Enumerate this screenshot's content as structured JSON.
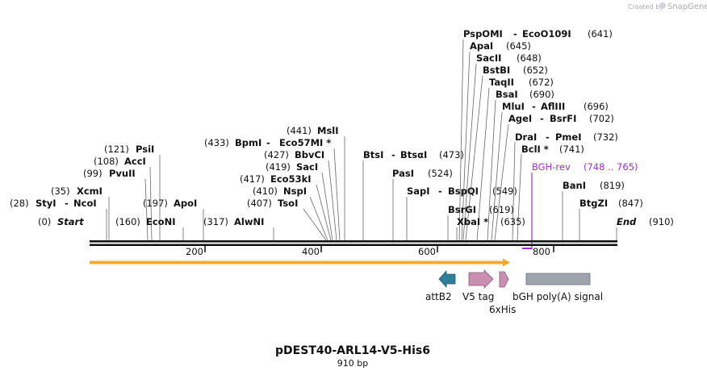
{
  "app": {
    "watermark": "Created by",
    "brand": "SnapGene"
  },
  "plasmid": {
    "name": "pDEST40-ARL14-V5-His6",
    "size_label": "910 bp"
  },
  "colors": {
    "backbone": "#000000",
    "primer": "#9933cc",
    "orf": "#f5a623",
    "attB2": "#2e7d99",
    "v5": "#c98fb0",
    "his": "#c98fb0",
    "polyA": "#a0a5ad"
  },
  "scale": {
    "ticks": [
      "200",
      "400",
      "600",
      "800"
    ]
  },
  "sites": [
    {
      "name": "Start",
      "italic": true,
      "pos": "(0)"
    },
    {
      "name": "StyI",
      "name2": "NcoI",
      "pos": "(28)"
    },
    {
      "name": "XcmI",
      "pos": "(35)"
    },
    {
      "name": "PvuII",
      "pos": "(99)"
    },
    {
      "name": "AccI",
      "pos": "(108)"
    },
    {
      "name": "PsiI",
      "pos": "(121)"
    },
    {
      "name": "EcoNI",
      "pos": "(160)"
    },
    {
      "name": "ApoI",
      "pos": "(197)"
    },
    {
      "name": "AlwNI",
      "pos": "(317)"
    },
    {
      "name": "TsoI",
      "pos": "(407)"
    },
    {
      "name": "NspI",
      "pos": "(410)"
    },
    {
      "name": "Eco53kI",
      "pos": "(417)"
    },
    {
      "name": "SacI",
      "pos": "(419)"
    },
    {
      "name": "BbvCI",
      "pos": "(427)"
    },
    {
      "name": "BpmI",
      "name2": "Eco57MI *",
      "pos": "(433)"
    },
    {
      "name": "MslI",
      "pos": "(441)"
    },
    {
      "name": "BtsI",
      "name2": "BtsαI",
      "pos": "(473)"
    },
    {
      "name": "PasI",
      "pos": "(524)"
    },
    {
      "name": "SapI",
      "name2": "BspQI",
      "pos": "(549)"
    },
    {
      "name": "BsrGI",
      "pos": "(619)"
    },
    {
      "name": "XbaI *",
      "pos": "(635)"
    },
    {
      "name": "PspOMI",
      "name2": "EcoO109I",
      "pos": "(641)"
    },
    {
      "name": "ApaI",
      "pos": "(645)"
    },
    {
      "name": "SacII",
      "pos": "(648)"
    },
    {
      "name": "BstBI",
      "pos": "(652)"
    },
    {
      "name": "TaqII",
      "pos": "(672)"
    },
    {
      "name": "BsaI",
      "pos": "(690)"
    },
    {
      "name": "MluI",
      "name2": "AflIII",
      "pos": "(696)"
    },
    {
      "name": "AgeI",
      "name2": "BsrFI",
      "pos": "(702)"
    },
    {
      "name": "DraI",
      "name2": "PmeI",
      "pos": "(732)"
    },
    {
      "name": "BclI *",
      "pos": "(741)"
    },
    {
      "name": "BanI",
      "pos": "(819)"
    },
    {
      "name": "BtgZI",
      "pos": "(847)"
    },
    {
      "name": "End",
      "italic": true,
      "pos": "(910)"
    }
  ],
  "primer": {
    "name": "BGH-rev",
    "range": "(748 .. 765)"
  },
  "features": [
    {
      "id": "attB2",
      "label": "attB2"
    },
    {
      "id": "v5",
      "label": "V5 tag"
    },
    {
      "id": "his",
      "label": "6xHis"
    },
    {
      "id": "polyA",
      "label": "bGH poly(A) signal"
    }
  ]
}
